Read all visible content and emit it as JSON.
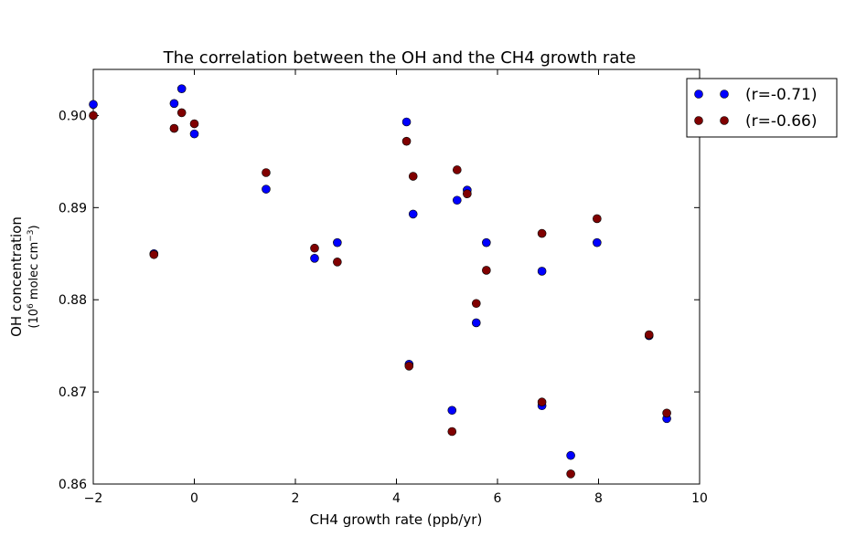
{
  "chart_data": {
    "type": "scatter",
    "title": "The correlation between the OH and the CH4 growth rate",
    "xlabel": "CH4 growth rate (ppb/yr)",
    "ylabel_line1": "OH concentration",
    "ylabel_line2_prefix": "(10",
    "ylabel_line2_exp": "6",
    "ylabel_line2_mid": " molec cm",
    "ylabel_line2_exp2": "−3",
    "ylabel_line2_suffix": ")",
    "xlim": [
      -2,
      10
    ],
    "ylim": [
      0.86,
      0.905
    ],
    "xticks": [
      -2,
      0,
      2,
      4,
      6,
      8,
      10
    ],
    "yticks": [
      0.86,
      0.87,
      0.88,
      0.89,
      0.9
    ],
    "grid": false,
    "legend_position": "outside-top-right",
    "series": [
      {
        "name": "(r=-0.71)",
        "color": "#0000ff",
        "x": [
          -2.0,
          -0.8,
          -0.4,
          -0.25,
          0.0,
          1.42,
          2.38,
          2.83,
          4.2,
          4.25,
          4.33,
          5.1,
          5.2,
          5.4,
          5.58,
          5.78,
          6.88,
          6.88,
          7.45,
          7.97,
          9.0,
          9.35
        ],
        "y": [
          0.9012,
          0.885,
          0.9013,
          0.9029,
          0.898,
          0.892,
          0.8845,
          0.8862,
          0.8993,
          0.873,
          0.8893,
          0.868,
          0.8908,
          0.8919,
          0.8775,
          0.8862,
          0.8831,
          0.8685,
          0.8631,
          0.8862,
          0.8761,
          0.8671
        ]
      },
      {
        "name": "(r=-0.66)",
        "color": "#800000",
        "x": [
          -2.0,
          -0.8,
          -0.4,
          -0.25,
          0.0,
          1.42,
          2.38,
          2.83,
          4.2,
          4.25,
          4.33,
          5.1,
          5.2,
          5.4,
          5.58,
          5.78,
          6.88,
          6.88,
          7.45,
          7.97,
          9.0,
          9.35
        ],
        "y": [
          0.9,
          0.8849,
          0.8986,
          0.9003,
          0.8991,
          0.8938,
          0.8856,
          0.8841,
          0.8972,
          0.8728,
          0.8934,
          0.8657,
          0.8941,
          0.8915,
          0.8796,
          0.8832,
          0.8872,
          0.8689,
          0.8611,
          0.8888,
          0.8762,
          0.8677
        ]
      }
    ]
  }
}
